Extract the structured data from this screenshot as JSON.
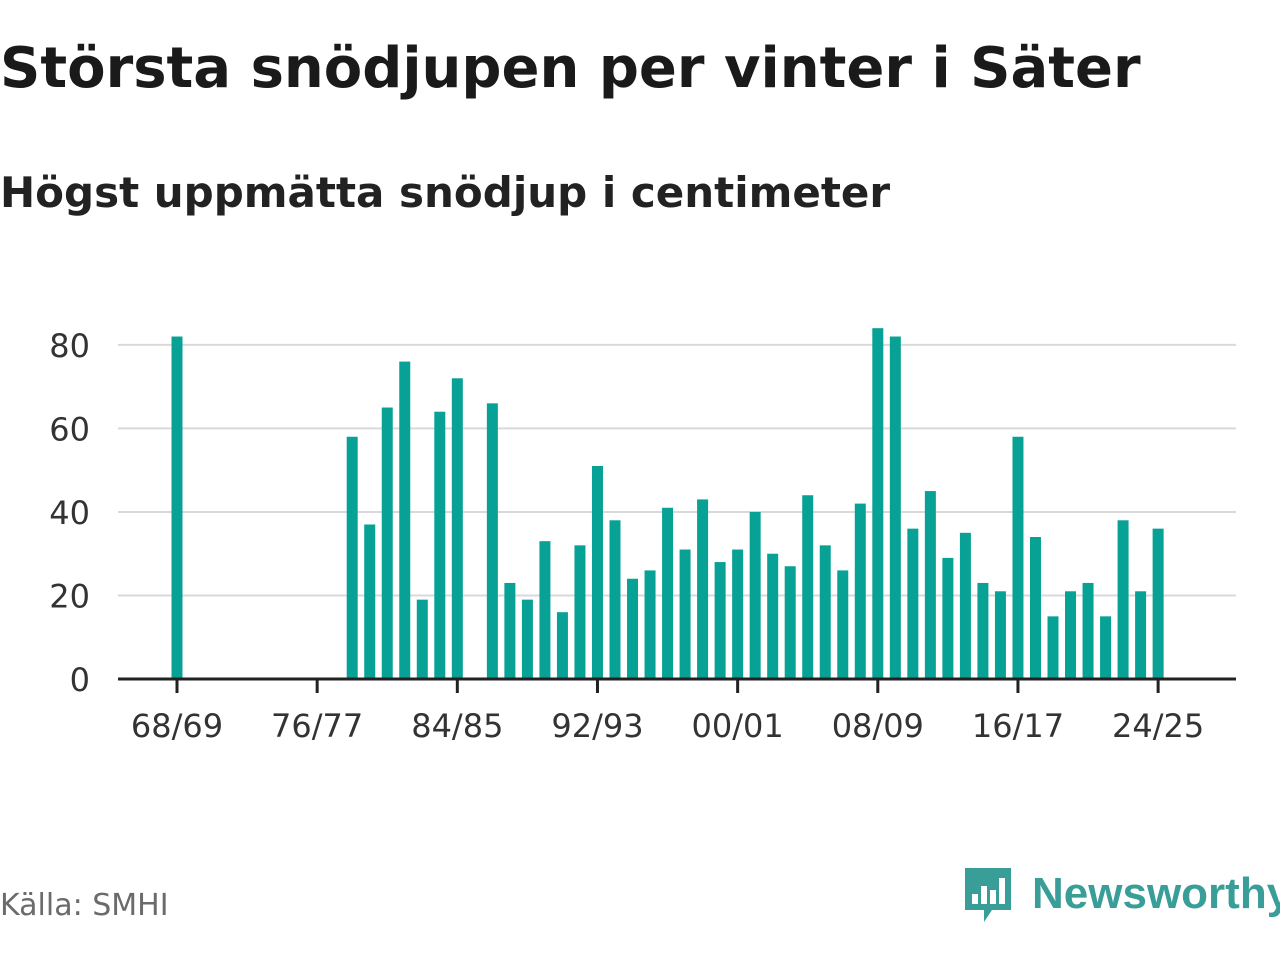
{
  "header": {
    "title": "Största snödjupen per vinter i Säter",
    "subtitle": "Högst uppmätta snödjup i centimeter"
  },
  "footer": {
    "source": "Källa: SMHI",
    "brand": "Newsworthy"
  },
  "colors": {
    "bar": "#08a195",
    "grid": "#d9d9d9",
    "axis": "#222222",
    "brand": "#3a9e98"
  },
  "chart_data": {
    "type": "bar",
    "title": "Största snödjupen per vinter i Säter",
    "subtitle": "Högst uppmätta snödjup i centimeter",
    "xlabel": "",
    "ylabel": "",
    "ylim": [
      0,
      85
    ],
    "yticks": [
      0,
      20,
      40,
      60,
      80
    ],
    "xtick_labels": [
      "68/69",
      "76/77",
      "84/85",
      "92/93",
      "00/01",
      "08/09",
      "16/17",
      "24/25"
    ],
    "categories": [
      "68/69",
      "69/70",
      "70/71",
      "71/72",
      "72/73",
      "73/74",
      "74/75",
      "75/76",
      "76/77",
      "77/78",
      "78/79",
      "79/80",
      "80/81",
      "81/82",
      "82/83",
      "83/84",
      "84/85",
      "85/86",
      "86/87",
      "87/88",
      "88/89",
      "89/90",
      "90/91",
      "91/92",
      "92/93",
      "93/94",
      "94/95",
      "95/96",
      "96/97",
      "97/98",
      "98/99",
      "99/00",
      "00/01",
      "01/02",
      "02/03",
      "03/04",
      "04/05",
      "05/06",
      "06/07",
      "07/08",
      "08/09",
      "09/10",
      "10/11",
      "11/12",
      "12/13",
      "13/14",
      "14/15",
      "15/16",
      "16/17",
      "17/18",
      "18/19",
      "19/20",
      "20/21",
      "21/22",
      "22/23",
      "23/24",
      "24/25",
      "25/26"
    ],
    "values": [
      82,
      null,
      null,
      null,
      null,
      null,
      null,
      null,
      null,
      null,
      58,
      37,
      65,
      76,
      19,
      64,
      72,
      null,
      66,
      23,
      19,
      33,
      16,
      32,
      51,
      38,
      24,
      26,
      41,
      31,
      43,
      28,
      31,
      40,
      30,
      27,
      44,
      32,
      26,
      42,
      84,
      82,
      36,
      45,
      29,
      35,
      23,
      21,
      58,
      34,
      15,
      21,
      23,
      15,
      38,
      21,
      36,
      null
    ]
  }
}
